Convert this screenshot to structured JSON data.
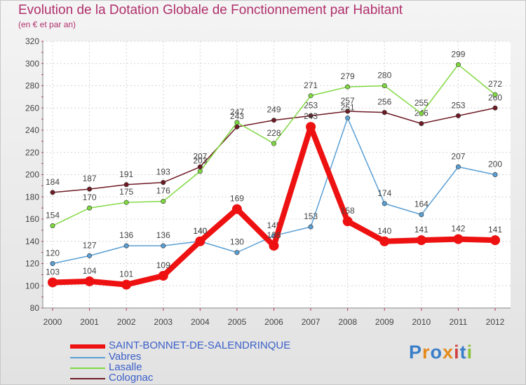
{
  "chart_data": {
    "type": "line",
    "title": "Evolution de la Dotation Globale de Fonctionnement par Habitant",
    "subtitle": "(en € et par an)",
    "x": [
      "2000",
      "2001",
      "2002",
      "2003",
      "2004",
      "2005",
      "2006",
      "2007",
      "2008",
      "2009",
      "2010",
      "2011",
      "2012"
    ],
    "ylim": [
      80,
      320
    ],
    "yticks": [
      "80",
      "100",
      "120",
      "140",
      "160",
      "180",
      "200",
      "220",
      "240",
      "260",
      "280",
      "300",
      "320"
    ],
    "grid": true,
    "legend_position": "bottom-left",
    "series": [
      {
        "name": "Colognac",
        "color": "#6e1a24",
        "values": [
          184,
          187,
          191,
          193,
          207,
          243,
          249,
          253,
          257,
          256,
          246,
          253,
          260
        ]
      },
      {
        "name": "Lasalle",
        "color": "#80d840",
        "values": [
          154,
          170,
          175,
          176,
          203,
          247,
          228,
          271,
          279,
          280,
          255,
          299,
          272
        ]
      },
      {
        "name": "Vabres",
        "color": "#5a9fd4",
        "values": [
          120,
          127,
          136,
          136,
          140,
          130,
          145,
          153,
          251,
          174,
          164,
          207,
          200
        ]
      },
      {
        "name": "SAINT-BONNET-DE-SALENDRINQUE",
        "color": "#ee1111",
        "values": [
          103,
          104,
          101,
          109,
          140,
          169,
          136,
          243,
          158,
          140,
          141,
          142,
          141
        ]
      }
    ]
  },
  "legend": {
    "items": [
      {
        "label": "SAINT-BONNET-DE-SALENDRINQUE",
        "color": "#ee1111"
      },
      {
        "label": "Vabres",
        "color": "#5a9fd4"
      },
      {
        "label": "Lasalle",
        "color": "#80d840"
      },
      {
        "label": "Colognac",
        "color": "#6e1a24"
      }
    ]
  },
  "logo": {
    "text": "Proxiti"
  }
}
